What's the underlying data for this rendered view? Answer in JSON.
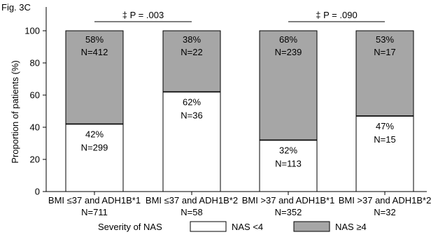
{
  "chart_data": {
    "type": "bar",
    "stacked": true,
    "figure_label": "Fig. 3C",
    "ylabel": "Proportion of patients (%)",
    "ylim": [
      0,
      100
    ],
    "yticks": [
      "0",
      "20",
      "40",
      "60",
      "80",
      "100"
    ],
    "categories": [
      {
        "label": "BMI ≤37 and ADH1B*1",
        "n_label": "N=711"
      },
      {
        "label": "BMI ≤37 and ADH1B*2",
        "n_label": "N=58"
      },
      {
        "label": "BMI >37 and ADH1B*1",
        "n_label": "N=352"
      },
      {
        "label": "BMI >37 and ADH1B*2",
        "n_label": "N=32"
      }
    ],
    "series": [
      {
        "name": "NAS <4",
        "color": "#ffffff",
        "values": [
          42,
          62,
          32,
          47
        ],
        "pct_labels": [
          "42%",
          "62%",
          "32%",
          "47%"
        ],
        "n_labels": [
          "N=299",
          "N=36",
          "N=113",
          "N=15"
        ]
      },
      {
        "name": "NAS ≥4",
        "color": "#a6a6a6",
        "values": [
          58,
          38,
          68,
          53
        ],
        "pct_labels": [
          "58%",
          "38%",
          "68%",
          "53%"
        ],
        "n_labels": [
          "N=412",
          "N=22",
          "N=239",
          "N=17"
        ]
      }
    ],
    "annotations": [
      {
        "text": "‡ P = .003",
        "groups": [
          0,
          1
        ]
      },
      {
        "text": "‡ P = .090",
        "groups": [
          2,
          3
        ]
      }
    ],
    "legend": {
      "title": "Severity of NAS",
      "placement": "bottom"
    }
  }
}
